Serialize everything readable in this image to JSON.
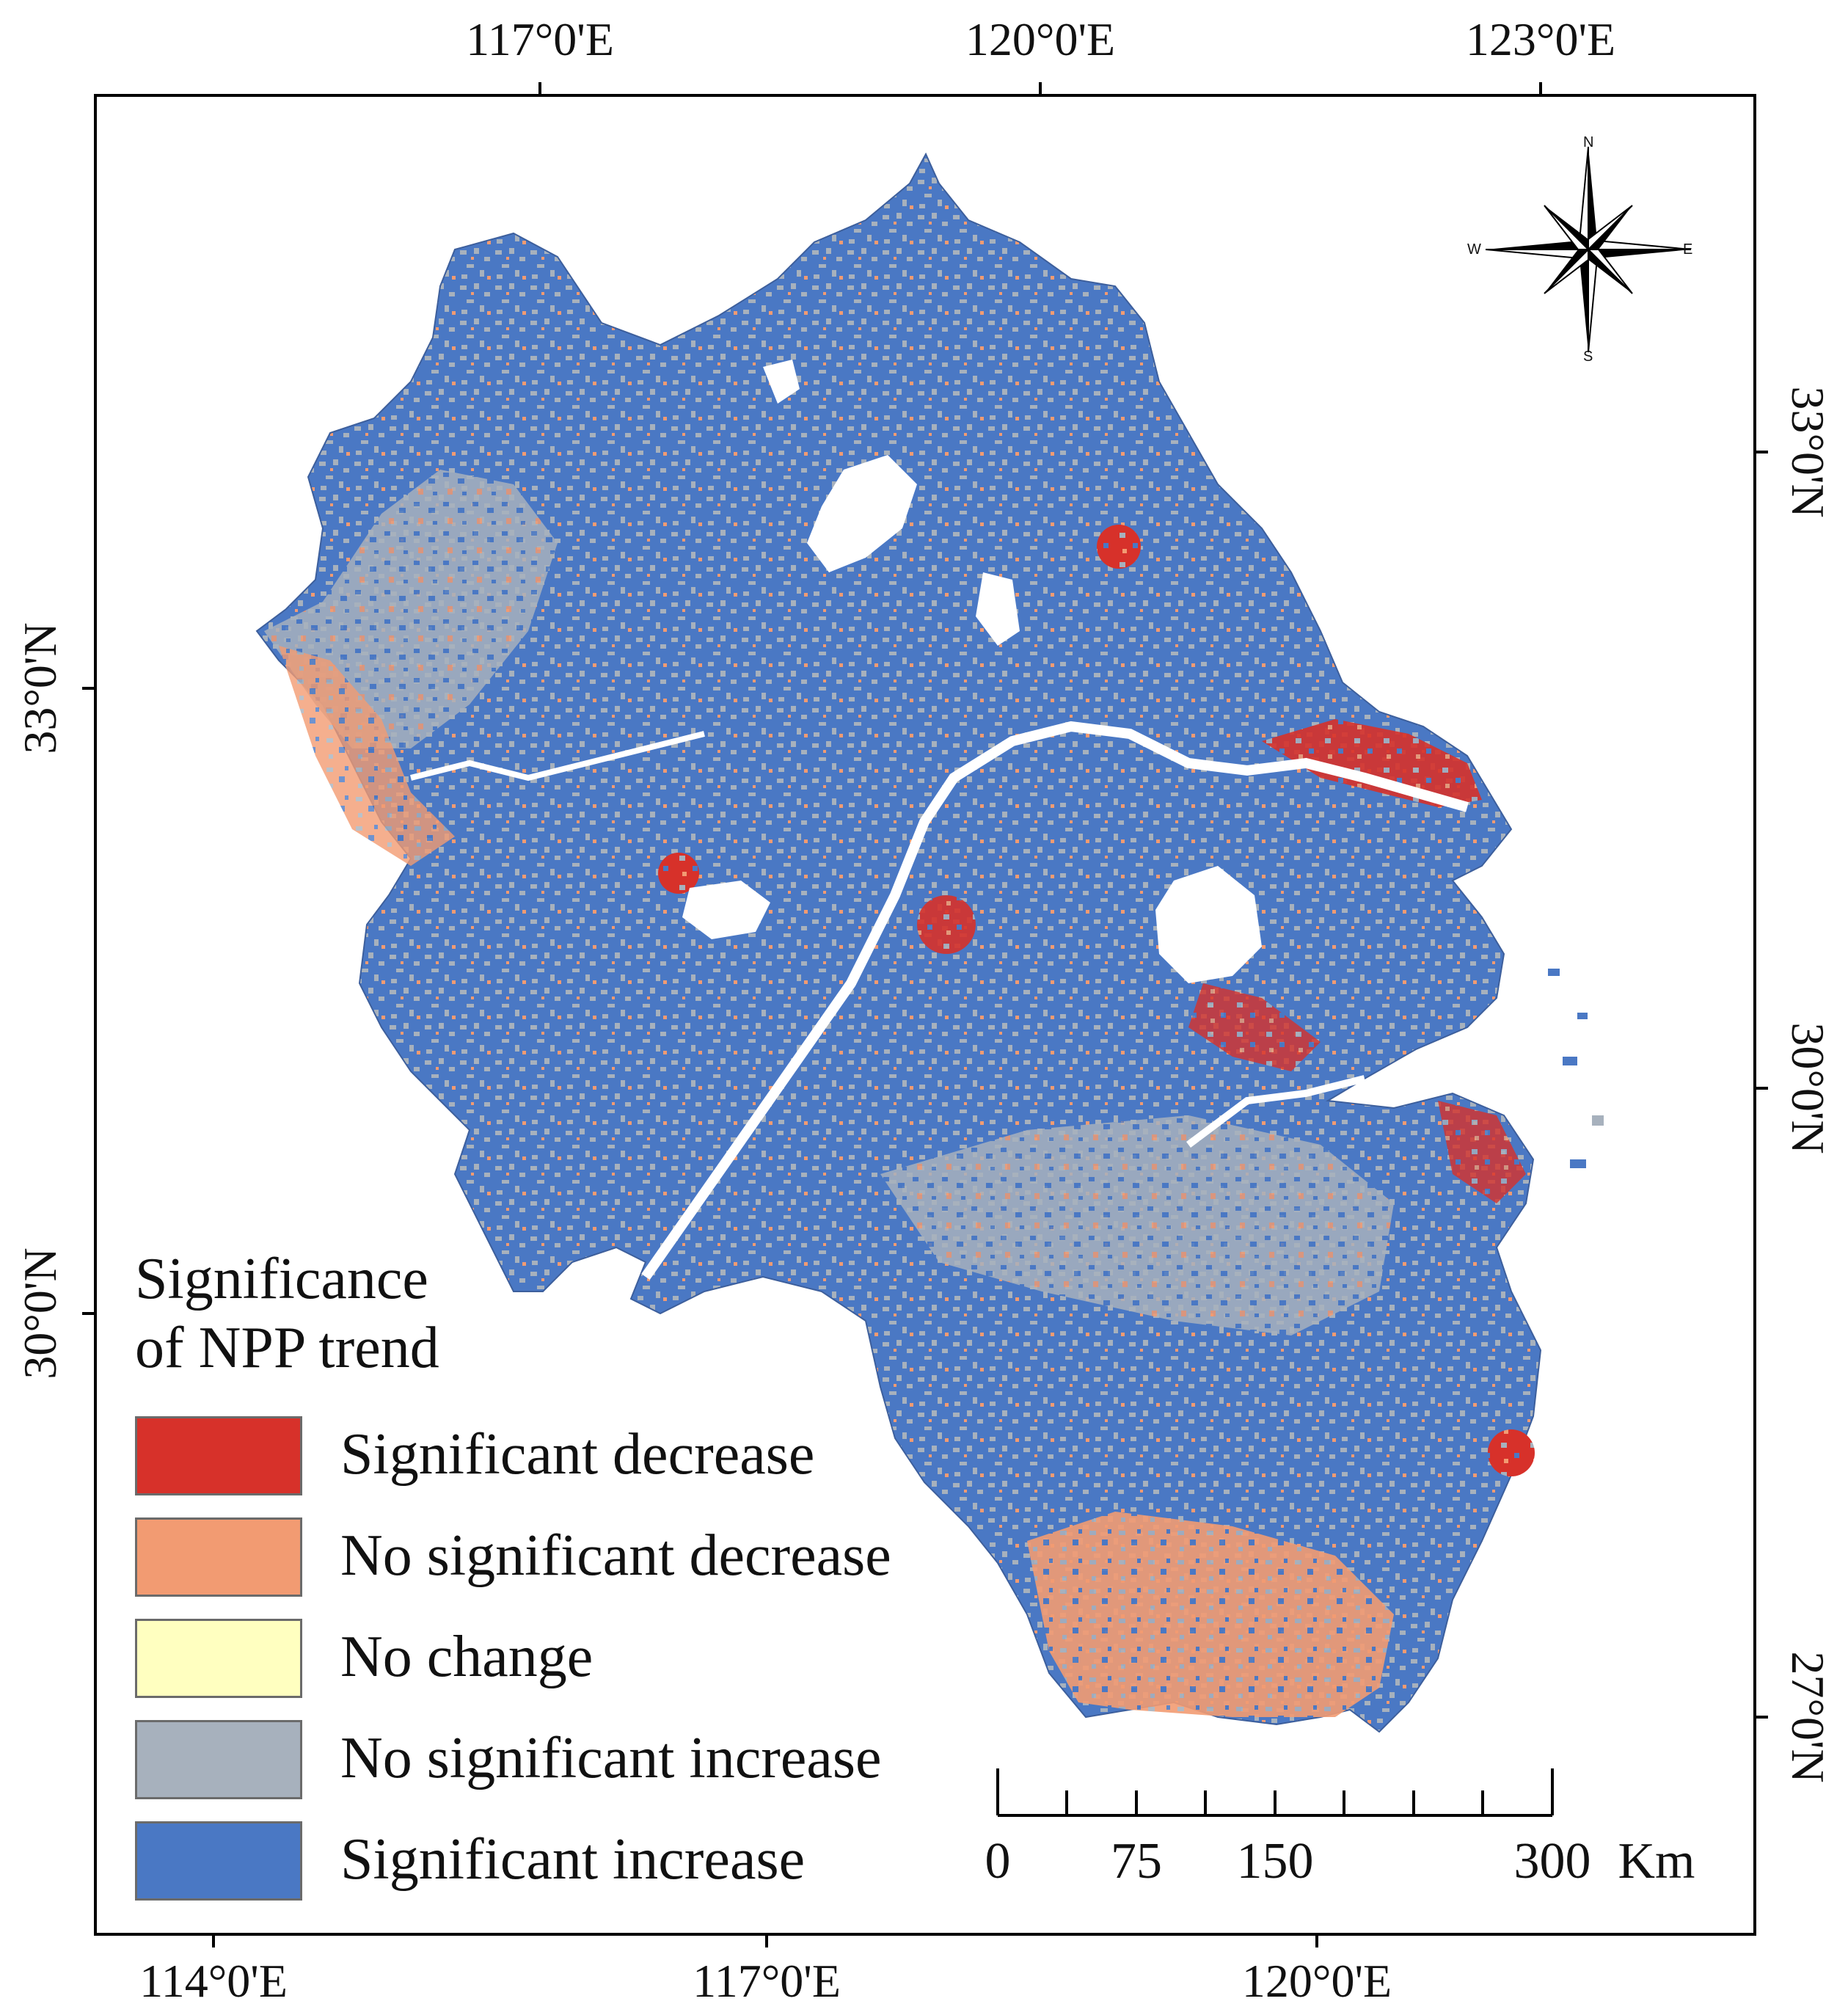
{
  "map": {
    "top_axis_labels": [
      "117°0'E",
      "120°0'E",
      "123°0'E"
    ],
    "bottom_axis_labels": [
      "114°0'E",
      "117°0'E",
      "120°0'E"
    ],
    "left_axis_labels": [
      "33°0'N",
      "30°0'N"
    ],
    "right_axis_labels": [
      "33°0'N",
      "30°0'N",
      "27°0'N"
    ]
  },
  "legend": {
    "title_line1": "Significance",
    "title_line2": "of NPP trend",
    "items": [
      {
        "label": "Significant decrease",
        "color": "#d7312a"
      },
      {
        "label": "No significant decrease",
        "color": "#f29b72"
      },
      {
        "label": "No change",
        "color": "#ffffc0"
      },
      {
        "label": "No significant increase",
        "color": "#a7b1bd"
      },
      {
        "label": "Significant increase",
        "color": "#4a78c4"
      }
    ]
  },
  "scale_bar": {
    "labels": [
      "0",
      "75",
      "150",
      "300"
    ],
    "unit": "Km"
  },
  "compass": {
    "n": "N",
    "s": "S",
    "e": "E",
    "w": "W"
  }
}
